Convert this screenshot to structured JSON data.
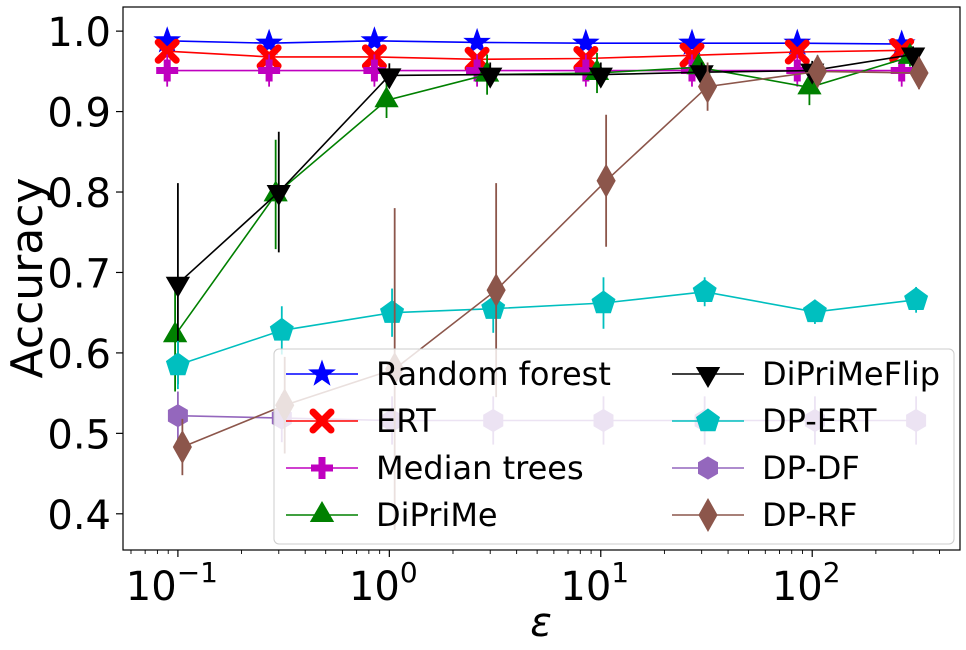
{
  "chart_data": {
    "type": "line",
    "xlabel": "ε",
    "ylabel": "Accuracy",
    "xscale": "log",
    "xlim": [
      0.055,
      500
    ],
    "ylim": [
      0.355,
      1.03
    ],
    "yticks": [
      {
        "value": 0.4,
        "label": "0.4"
      },
      {
        "value": 0.5,
        "label": "0.5"
      },
      {
        "value": 0.6,
        "label": "0.6"
      },
      {
        "value": 0.7,
        "label": "0.7"
      },
      {
        "value": 0.8,
        "label": "0.8"
      },
      {
        "value": 0.9,
        "label": "0.9"
      },
      {
        "value": 1.0,
        "label": "1.0"
      }
    ],
    "xticks": [
      {
        "value": 0.1,
        "base": "10",
        "exp": "−1"
      },
      {
        "value": 1,
        "base": "10",
        "exp": "0"
      },
      {
        "value": 10,
        "base": "10",
        "exp": "1"
      },
      {
        "value": 100,
        "base": "10",
        "exp": "2"
      }
    ],
    "grid": false,
    "legend_position": "lower-right",
    "legend_columns": 2,
    "series": [
      {
        "name": "Random forest",
        "color": "#0000ff",
        "marker": "star",
        "error_color": "#0000ff",
        "x": [
          0.089,
          0.27,
          0.85,
          2.6,
          8.5,
          27,
          85,
          265
        ],
        "y": [
          0.988,
          0.985,
          0.988,
          0.986,
          0.985,
          0.985,
          0.985,
          0.984
        ],
        "err": [
          0.004,
          0.004,
          0.004,
          0.004,
          0.004,
          0.004,
          0.004,
          0.004
        ]
      },
      {
        "name": "ERT",
        "color": "#ff0000",
        "marker": "x",
        "error_color": "#ff0000",
        "x": [
          0.089,
          0.27,
          0.85,
          2.6,
          8.5,
          27,
          85,
          265
        ],
        "y": [
          0.975,
          0.968,
          0.968,
          0.965,
          0.966,
          0.97,
          0.974,
          0.976
        ],
        "err": [
          0.006,
          0.006,
          0.006,
          0.006,
          0.006,
          0.006,
          0.006,
          0.006
        ]
      },
      {
        "name": "Median trees",
        "color": "#bf00bf",
        "marker": "plus",
        "error_color": "#bf00bf",
        "x": [
          0.089,
          0.27,
          0.85,
          2.6,
          8.5,
          27,
          85,
          265
        ],
        "y": [
          0.951,
          0.951,
          0.951,
          0.951,
          0.951,
          0.951,
          0.951,
          0.951
        ],
        "err": [
          0.02,
          0.02,
          0.02,
          0.02,
          0.02,
          0.02,
          0.02,
          0.02
        ]
      },
      {
        "name": "DiPriMe",
        "color": "#008000",
        "marker": "triangle-up",
        "error_color": "#008000",
        "x": [
          0.097,
          0.29,
          0.97,
          2.9,
          9.6,
          29,
          97,
          290
        ],
        "y": [
          0.622,
          0.797,
          0.914,
          0.946,
          0.948,
          0.955,
          0.93,
          0.968
        ],
        "err": [
          0.07,
          0.068,
          0.022,
          0.025,
          0.025,
          0.015,
          0.022,
          0.012
        ]
      },
      {
        "name": "DiPriMeFlip",
        "color": "#000000",
        "marker": "triangle-down",
        "error_color": "#000000",
        "x": [
          0.1,
          0.3,
          1.0,
          3.0,
          10,
          30,
          100,
          300
        ],
        "y": [
          0.686,
          0.8,
          0.945,
          0.946,
          0.946,
          0.949,
          0.951,
          0.971
        ],
        "err": [
          0.125,
          0.075,
          0.015,
          0.015,
          0.015,
          0.012,
          0.012,
          0.01
        ]
      },
      {
        "name": "DP-ERT",
        "color": "#00bfbf",
        "marker": "pentagon",
        "error_color": "#00bfbf",
        "x": [
          0.1,
          0.31,
          1.03,
          3.1,
          10.3,
          31,
          103,
          310
        ],
        "y": [
          0.585,
          0.628,
          0.65,
          0.655,
          0.662,
          0.676,
          0.651,
          0.666
        ],
        "err": [
          0.03,
          0.03,
          0.03,
          0.03,
          0.032,
          0.018,
          0.015,
          0.016
        ]
      },
      {
        "name": "DP-DF",
        "color": "#9467bd",
        "marker": "hexagon",
        "error_color": "#9467bd",
        "x": [
          0.1,
          0.31,
          1.03,
          3.1,
          10.3,
          31,
          103,
          310
        ],
        "y": [
          0.522,
          0.519,
          0.516,
          0.516,
          0.516,
          0.516,
          0.516,
          0.516
        ],
        "err": [
          0.03,
          0.03,
          0.03,
          0.03,
          0.03,
          0.03,
          0.03,
          0.03
        ]
      },
      {
        "name": "DP-RF",
        "color": "#8c564b",
        "marker": "diamond",
        "error_color": "#8c564b",
        "x": [
          0.105,
          0.32,
          1.06,
          3.2,
          10.6,
          32,
          106,
          320
        ],
        "y": [
          0.483,
          0.535,
          0.58,
          0.678,
          0.814,
          0.931,
          0.95,
          0.948
        ],
        "err": [
          0.035,
          0.06,
          0.2,
          0.133,
          0.082,
          0.03,
          0.02,
          0.02
        ]
      }
    ]
  }
}
